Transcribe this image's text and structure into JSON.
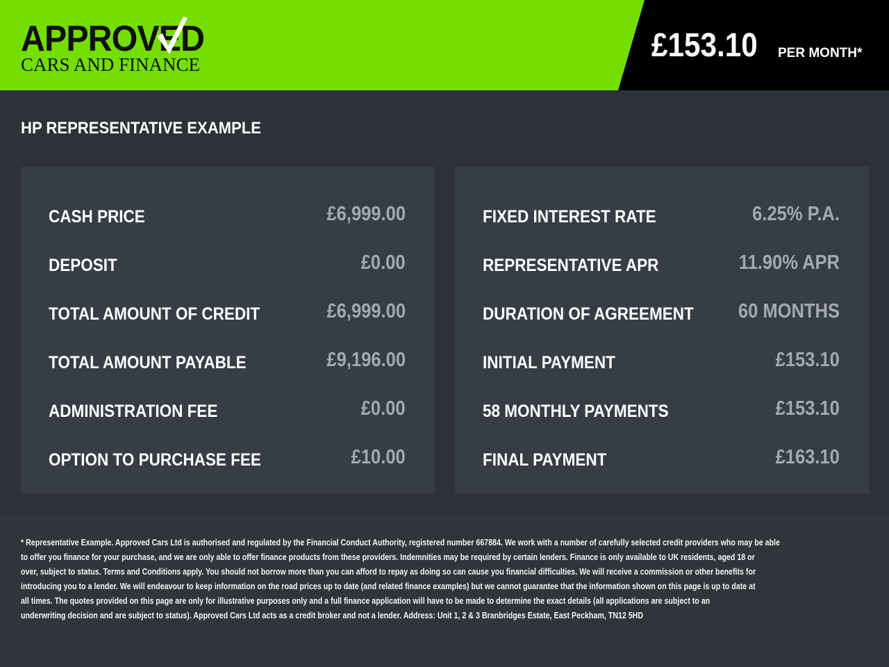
{
  "header": {
    "logo": {
      "line1": "APPROVED",
      "line2": "CARS AND FINANCE"
    },
    "price": "£153.10",
    "per_month": "PER MONTH*",
    "colors": {
      "brand_green": "#74de00",
      "header_dark": "#000000"
    }
  },
  "section_title": "HP REPRESENTATIVE EXAMPLE",
  "left_panel": [
    {
      "label": "CASH PRICE",
      "value": "£6,999.00"
    },
    {
      "label": "DEPOSIT",
      "value": "£0.00"
    },
    {
      "label": "TOTAL AMOUNT OF CREDIT",
      "value": "£6,999.00"
    },
    {
      "label": "TOTAL AMOUNT PAYABLE",
      "value": "£9,196.00"
    },
    {
      "label": "ADMINISTRATION FEE",
      "value": "£0.00"
    },
    {
      "label": "OPTION TO PURCHASE FEE",
      "value": "£10.00"
    }
  ],
  "right_panel": [
    {
      "label": "FIXED INTEREST RATE",
      "value": "6.25% P.A."
    },
    {
      "label": "REPRESENTATIVE APR",
      "value": "11.90% APR"
    },
    {
      "label": "DURATION OF AGREEMENT",
      "value": "60 MONTHS"
    },
    {
      "label": "INITIAL PAYMENT",
      "value": "£153.10"
    },
    {
      "label": "58 MONTHLY PAYMENTS",
      "value": "£153.10"
    },
    {
      "label": "FINAL PAYMENT",
      "value": "£163.10"
    }
  ],
  "disclaimer": [
    "* Representative Example. Approved Cars Ltd is authorised and regulated by the Financial Conduct Authority, registered number 667884. We work with a number of carefully selected credit providers who may be able",
    "to offer you finance for your purchase, and we are only able to offer finance products from these providers. Indemnities may be required by certain lenders. Finance is only available to UK residents, aged 18 or",
    "over, subject to status. Terms and Conditions apply. You should not borrow more than you can afford to repay as doing so can cause you financial difficulties. We will receive a commission or other benefits for",
    "introducing you to a lender. We will endeavour to keep information on the road prices up to date (and related finance examples) but we cannot guarantee that the information shown on this page is up to date at",
    "all times. The quotes provided on this page are only for illustrative purposes only and a full finance application will have to be made to determine the exact details (all applications are subject to an",
    "underwriting decision and are subject to status). Approved Cars Ltd acts as a credit broker and not a lender. Address: Unit 1, 2 & 3 Branbridges Estate, East Peckham, TN12 5HD"
  ]
}
